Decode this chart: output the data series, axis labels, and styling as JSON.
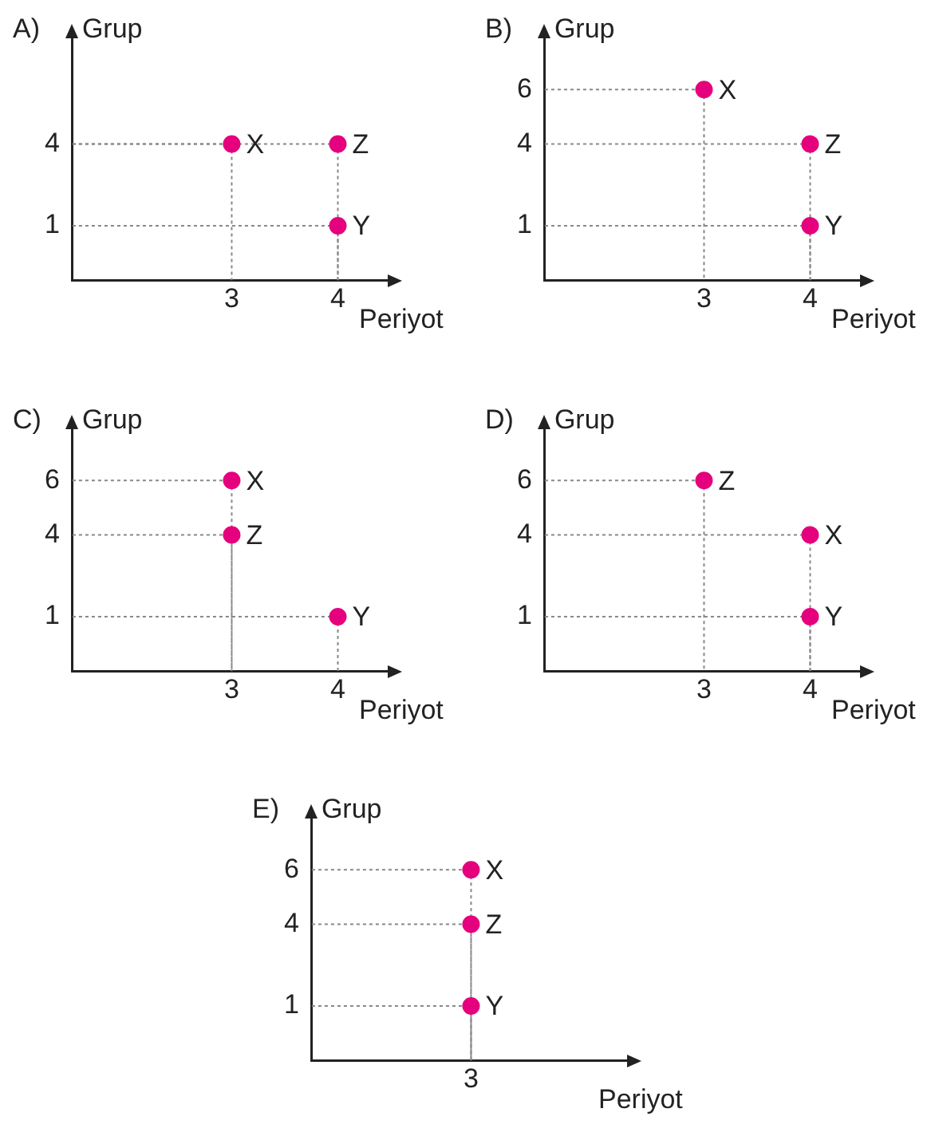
{
  "chart_data": [
    {
      "type": "scatter",
      "title": "A)",
      "xlabel": "Periyot",
      "ylabel": "Grup",
      "categories": [
        null,
        "3",
        "4"
      ],
      "ylim": [
        -1,
        8
      ],
      "yticks": [
        1,
        4
      ],
      "grid": true,
      "marker": "circle",
      "series": [
        {
          "name": "X",
          "color": "#e5007d",
          "x": [
            "3"
          ],
          "values": [
            4
          ]
        },
        {
          "name": "Z",
          "color": "#e5007d",
          "x": [
            "4"
          ],
          "values": [
            4
          ]
        },
        {
          "name": "Y",
          "color": "#e5007d",
          "x": [
            "4"
          ],
          "values": [
            1
          ]
        }
      ]
    },
    {
      "type": "scatter",
      "title": "B)",
      "xlabel": "Periyot",
      "ylabel": "Grup",
      "categories": [
        null,
        "3",
        "4"
      ],
      "ylim": [
        -1,
        8
      ],
      "yticks": [
        1,
        4,
        6
      ],
      "grid": true,
      "marker": "circle",
      "series": [
        {
          "name": "X",
          "color": "#e5007d",
          "x": [
            "3"
          ],
          "values": [
            6
          ]
        },
        {
          "name": "Z",
          "color": "#e5007d",
          "x": [
            "4"
          ],
          "values": [
            4
          ]
        },
        {
          "name": "Y",
          "color": "#e5007d",
          "x": [
            "4"
          ],
          "values": [
            1
          ]
        }
      ]
    },
    {
      "type": "scatter",
      "title": "C)",
      "xlabel": "Periyot",
      "ylabel": "Grup",
      "categories": [
        null,
        "3",
        "4"
      ],
      "ylim": [
        -1,
        8
      ],
      "yticks": [
        1,
        4,
        6
      ],
      "grid": true,
      "marker": "circle",
      "series": [
        {
          "name": "X",
          "color": "#e5007d",
          "x": [
            "3"
          ],
          "values": [
            6
          ]
        },
        {
          "name": "Z",
          "color": "#e5007d",
          "x": [
            "3"
          ],
          "values": [
            4
          ]
        },
        {
          "name": "Y",
          "color": "#e5007d",
          "x": [
            "4"
          ],
          "values": [
            1
          ]
        }
      ]
    },
    {
      "type": "scatter",
      "title": "D)",
      "xlabel": "Periyot",
      "ylabel": "Grup",
      "categories": [
        null,
        "3",
        "4"
      ],
      "ylim": [
        -1,
        8
      ],
      "yticks": [
        1,
        4,
        6
      ],
      "grid": true,
      "marker": "circle",
      "series": [
        {
          "name": "Z",
          "color": "#e5007d",
          "x": [
            "3"
          ],
          "values": [
            6
          ]
        },
        {
          "name": "X",
          "color": "#e5007d",
          "x": [
            "4"
          ],
          "values": [
            4
          ]
        },
        {
          "name": "Y",
          "color": "#e5007d",
          "x": [
            "4"
          ],
          "values": [
            1
          ]
        }
      ]
    },
    {
      "type": "scatter",
      "title": "E)",
      "xlabel": "Periyot",
      "ylabel": "Grup",
      "categories": [
        "3"
      ],
      "ylim": [
        -1,
        8
      ],
      "yticks": [
        1,
        4,
        6
      ],
      "grid": true,
      "marker": "circle",
      "series": [
        {
          "name": "X",
          "color": "#e5007d",
          "x": [
            "3"
          ],
          "values": [
            6
          ]
        },
        {
          "name": "Z",
          "color": "#e5007d",
          "x": [
            "3"
          ],
          "values": [
            4
          ]
        },
        {
          "name": "Y",
          "color": "#e5007d",
          "x": [
            "3"
          ],
          "values": [
            1
          ]
        }
      ]
    }
  ]
}
